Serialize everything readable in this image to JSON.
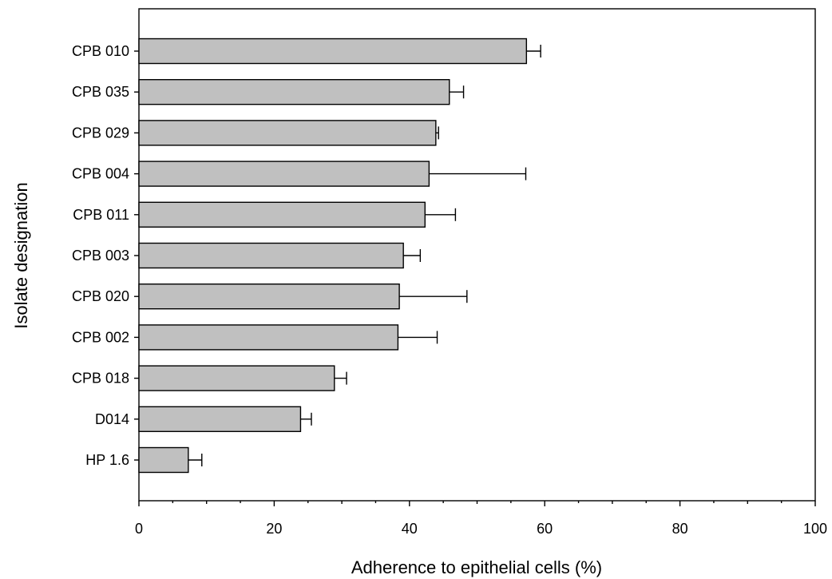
{
  "chart_data": {
    "type": "bar",
    "orientation": "horizontal",
    "categories": [
      "CPB 010",
      "CPB 035",
      "CPB 029",
      "CPB 004",
      "CPB 011",
      "CPB 003",
      "CPB 020",
      "CPB 002",
      "CPB 018",
      "D014",
      "HP 1.6"
    ],
    "values": [
      57.3,
      45.9,
      43.9,
      42.9,
      42.3,
      39.1,
      38.5,
      38.3,
      28.9,
      23.9,
      7.3
    ],
    "errors": [
      2.1,
      2.1,
      0.4,
      14.3,
      4.5,
      2.5,
      10.0,
      5.8,
      1.8,
      1.6,
      2.0
    ],
    "xlabel": "Adherence to epithelial cells (%)",
    "ylabel": "Isolate designation",
    "xlim": [
      0,
      100
    ],
    "xticks": [
      0,
      20,
      40,
      60,
      80,
      100
    ],
    "xtick_labels": [
      "0",
      "20",
      "40",
      "60",
      "80",
      "100"
    ],
    "grid": false,
    "bar_color": "#c0c0c0"
  }
}
